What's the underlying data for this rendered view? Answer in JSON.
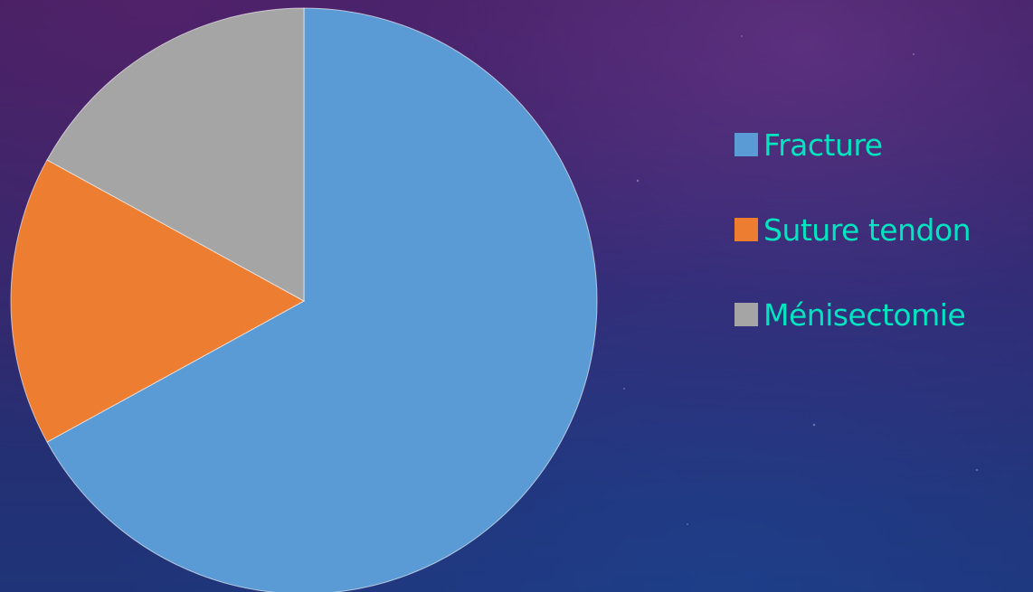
{
  "chart_data": {
    "type": "pie",
    "categories": [
      "Fracture",
      "Suture tendon",
      "Ménisectomie"
    ],
    "values": [
      67,
      16,
      17
    ],
    "colors": [
      "#5b9bd5",
      "#ed7d31",
      "#a5a5a5"
    ],
    "start_angle_deg": 0,
    "direction": "clockwise",
    "legend_position": "right",
    "legend_text_color": "#00e5c0"
  },
  "legend": {
    "items": [
      {
        "label": "Fracture",
        "color": "#5b9bd5"
      },
      {
        "label": "Suture tendon",
        "color": "#ed7d31"
      },
      {
        "label": "Ménisectomie",
        "color": "#a5a5a5"
      }
    ]
  }
}
